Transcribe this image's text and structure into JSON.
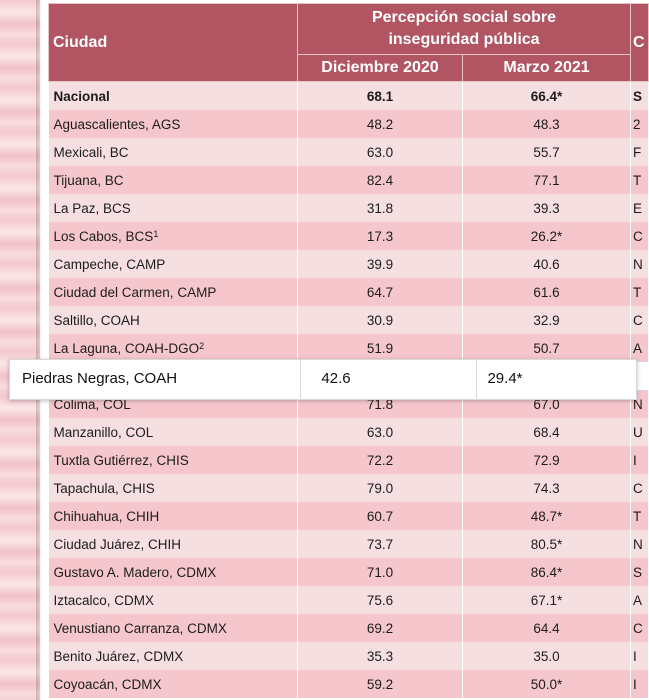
{
  "header": {
    "city_label": "Ciudad",
    "group_label_line1": "Percepción social sobre",
    "group_label_line2": "inseguridad pública",
    "col_dec": "Diciembre 2020",
    "col_mar": "Marzo 2021",
    "next_group_fragment": "C"
  },
  "rows": [
    {
      "city": "Nacional",
      "sup": "",
      "dec": "68.1",
      "mar": "66.4*",
      "next": "S"
    },
    {
      "city": "Aguascalientes, AGS",
      "sup": "",
      "dec": "48.2",
      "mar": "48.3",
      "next": "2"
    },
    {
      "city": "Mexicali, BC",
      "sup": "",
      "dec": "63.0",
      "mar": "55.7",
      "next": "F"
    },
    {
      "city": "Tijuana, BC",
      "sup": "",
      "dec": "82.4",
      "mar": "77.1",
      "next": "T"
    },
    {
      "city": "La Paz, BCS",
      "sup": "",
      "dec": "31.8",
      "mar": "39.3",
      "next": "E"
    },
    {
      "city": "Los Cabos, BCS",
      "sup": "1",
      "dec": "17.3",
      "mar": "26.2*",
      "next": "C"
    },
    {
      "city": "Campeche, CAMP",
      "sup": "",
      "dec": "39.9",
      "mar": "40.6",
      "next": "N"
    },
    {
      "city": "Ciudad del Carmen, CAMP",
      "sup": "",
      "dec": "64.7",
      "mar": "61.6",
      "next": "T"
    },
    {
      "city": "Saltillo, COAH",
      "sup": "",
      "dec": "30.9",
      "mar": "32.9",
      "next": "C"
    },
    {
      "city": "La Laguna, COAH-DGO",
      "sup": "2",
      "dec": "51.9",
      "mar": "50.7",
      "next": "A"
    },
    {
      "city": "Piedras Negras, COAH",
      "sup": "",
      "dec": "42.6",
      "mar": "29.4*",
      "next": ""
    },
    {
      "city": "Colima, COL",
      "sup": "",
      "dec": "71.8",
      "mar": "67.0",
      "next": "N"
    },
    {
      "city": "Manzanillo, COL",
      "sup": "",
      "dec": "63.0",
      "mar": "68.4",
      "next": "U"
    },
    {
      "city": "Tuxtla Gutiérrez, CHIS",
      "sup": "",
      "dec": "72.2",
      "mar": "72.9",
      "next": "I"
    },
    {
      "city": "Tapachula, CHIS",
      "sup": "",
      "dec": "79.0",
      "mar": "74.3",
      "next": "C"
    },
    {
      "city": "Chihuahua, CHIH",
      "sup": "",
      "dec": "60.7",
      "mar": "48.7*",
      "next": "T"
    },
    {
      "city": "Ciudad Juárez, CHIH",
      "sup": "",
      "dec": "73.7",
      "mar": "80.5*",
      "next": "N"
    },
    {
      "city": "Gustavo A. Madero, CDMX",
      "sup": "",
      "dec": "71.0",
      "mar": "86.4*",
      "next": "S"
    },
    {
      "city": "Iztacalco, CDMX",
      "sup": "",
      "dec": "75.6",
      "mar": "67.1*",
      "next": "A"
    },
    {
      "city": "Venustiano Carranza, CDMX",
      "sup": "",
      "dec": "69.2",
      "mar": "64.4",
      "next": "C"
    },
    {
      "city": "Benito Juárez, CDMX",
      "sup": "",
      "dec": "35.3",
      "mar": "35.0",
      "next": "I"
    },
    {
      "city": "Coyoacán, CDMX",
      "sup": "",
      "dec": "59.2",
      "mar": "50.0*",
      "next": "I"
    }
  ],
  "highlighted_row": {
    "city": "Piedras Negras, COAH",
    "dec": "42.6",
    "mar": "29.4*"
  },
  "colors": {
    "header_bg": "#b25563",
    "row_light": "#f6dfe1",
    "row_dark": "#f5c7cc"
  }
}
